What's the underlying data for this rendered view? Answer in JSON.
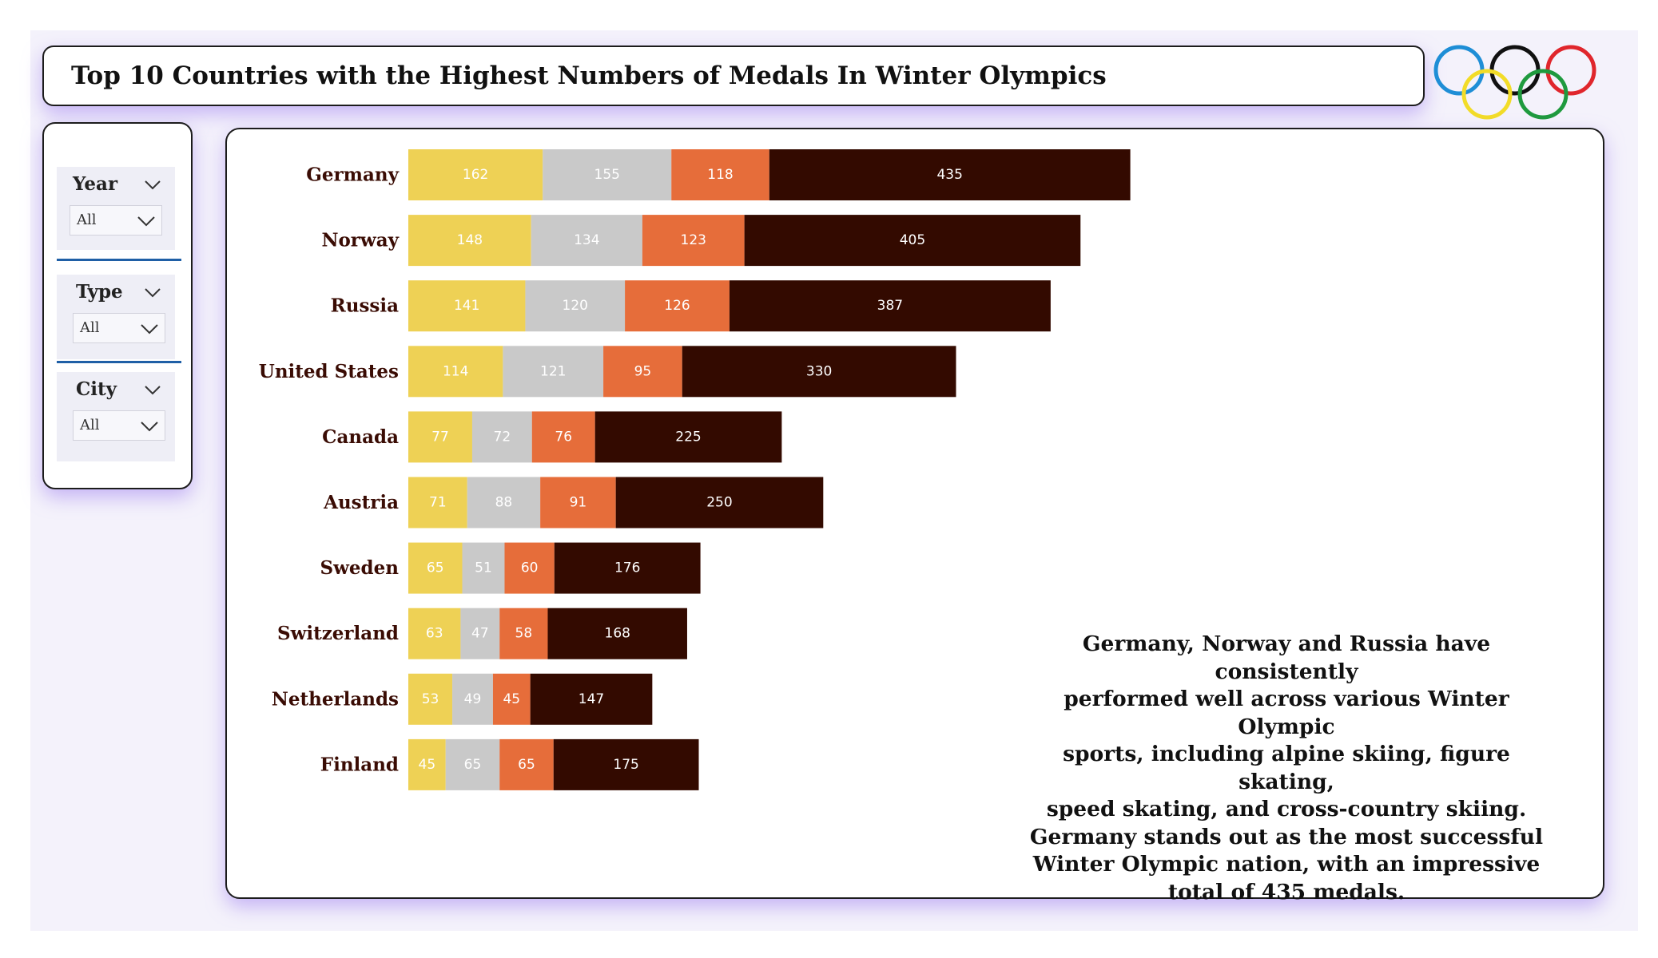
{
  "header": {
    "title": "Top 10 Countries with the Highest Numbers of Medals In Winter Olympics"
  },
  "logo": {
    "name": "olympic-rings",
    "colors": [
      "#1e8ed6",
      "#111111",
      "#e0262c",
      "#f2dc28",
      "#1f9a3e"
    ]
  },
  "filters": [
    {
      "label": "Year",
      "value": "All"
    },
    {
      "label": "Type",
      "value": "All"
    },
    {
      "label": "City",
      "value": "All"
    }
  ],
  "chart_data": {
    "type": "bar",
    "orientation": "horizontal",
    "stacked": true,
    "categories": [
      "Germany",
      "Norway",
      "Russia",
      "United States",
      "Canada",
      "Austria",
      "Sweden",
      "Switzerland",
      "Netherlands",
      "Finland"
    ],
    "series": [
      {
        "color": "#eed155",
        "label_color": "#ffffff",
        "values": [
          162,
          148,
          141,
          114,
          77,
          71,
          65,
          63,
          53,
          45
        ]
      },
      {
        "color": "#c9c9c9",
        "label_color": "#ffffff",
        "values": [
          155,
          134,
          120,
          121,
          72,
          88,
          51,
          47,
          49,
          65
        ]
      },
      {
        "color": "#e66d3a",
        "label_color": "#ffffff",
        "values": [
          118,
          123,
          126,
          95,
          76,
          91,
          60,
          58,
          45,
          65
        ]
      },
      {
        "color": "#330a00",
        "label_color": "#ffffff",
        "values": [
          435,
          405,
          387,
          330,
          225,
          250,
          176,
          168,
          147,
          175
        ]
      }
    ],
    "data_labels": true,
    "legend": "none",
    "grid": false,
    "category_label_color": "#3a0c04"
  },
  "annotation": {
    "lines": [
      "Germany, Norway and Russia have consistently",
      "performed well across various Winter Olympic",
      "sports, including alpine skiing, figure skating,",
      "speed skating, and cross-country skiing.",
      "Germany stands out as the most successful",
      "Winter Olympic nation, with an impressive",
      "total of 435 medals."
    ]
  }
}
